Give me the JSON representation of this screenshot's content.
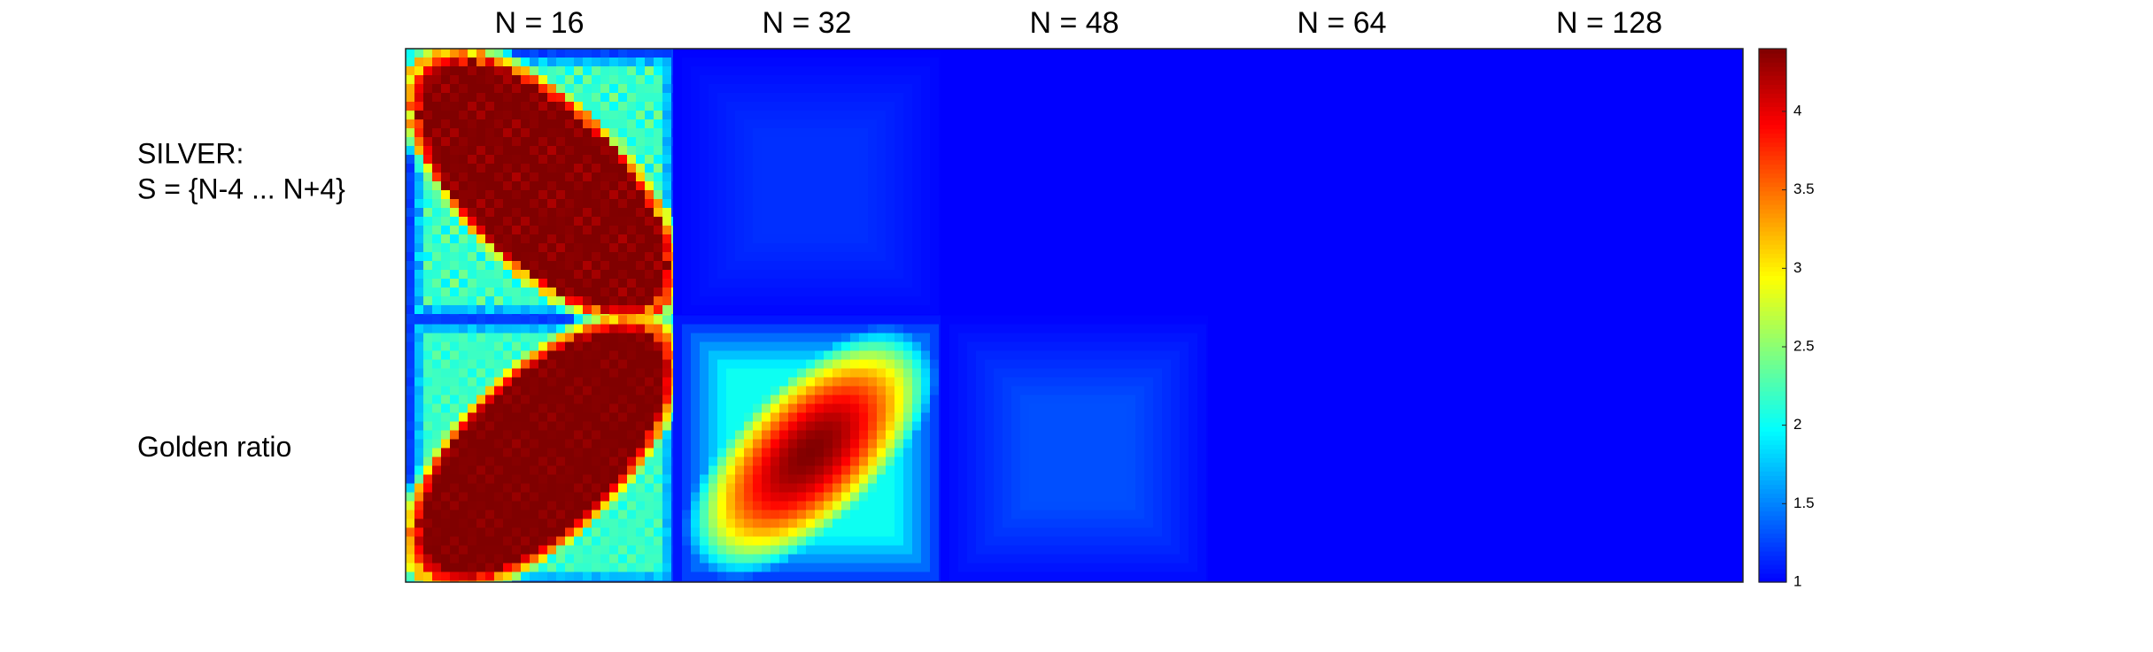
{
  "chart_data": {
    "type": "heatmap",
    "columns": [
      "N = 16",
      "N = 32",
      "N = 48",
      "N = 64",
      "N = 128"
    ],
    "rows": [
      {
        "label_lines": [
          "SILVER:",
          "S = {N-4 ... N+4}"
        ]
      },
      {
        "label_lines": [
          "Golden ratio"
        ]
      }
    ],
    "colorbar": {
      "colormap": "jet",
      "range": [
        1,
        4.4
      ],
      "ticks": [
        "1",
        "1.5",
        "2",
        "2.5",
        "3",
        "3.5",
        "4"
      ]
    },
    "panels": [
      [
        {
          "shape": "diamond-up",
          "background": 1.0,
          "plateau": 4.4,
          "noise": 0.45
        },
        {
          "shape": "faint-box",
          "background": 1.0,
          "plateau": 1.18,
          "noise": 0.05
        },
        {
          "shape": "flat",
          "background": 1.0,
          "plateau": 1.0,
          "noise": 0.0
        },
        {
          "shape": "flat",
          "background": 1.0,
          "plateau": 1.0,
          "noise": 0.0
        },
        {
          "shape": "flat",
          "background": 1.0,
          "plateau": 1.0,
          "noise": 0.0
        }
      ],
      [
        {
          "shape": "diamond-down",
          "background": 1.0,
          "plateau": 4.4,
          "noise": 0.25
        },
        {
          "shape": "diamond-down-soft",
          "background": 1.0,
          "plateau": 4.4,
          "noise": 0.0
        },
        {
          "shape": "faint-box",
          "background": 1.0,
          "plateau": 1.3,
          "noise": 0.0
        },
        {
          "shape": "flat",
          "background": 1.0,
          "plateau": 1.0,
          "noise": 0.0
        },
        {
          "shape": "flat",
          "background": 1.0,
          "plateau": 1.0,
          "noise": 0.0
        }
      ]
    ]
  }
}
